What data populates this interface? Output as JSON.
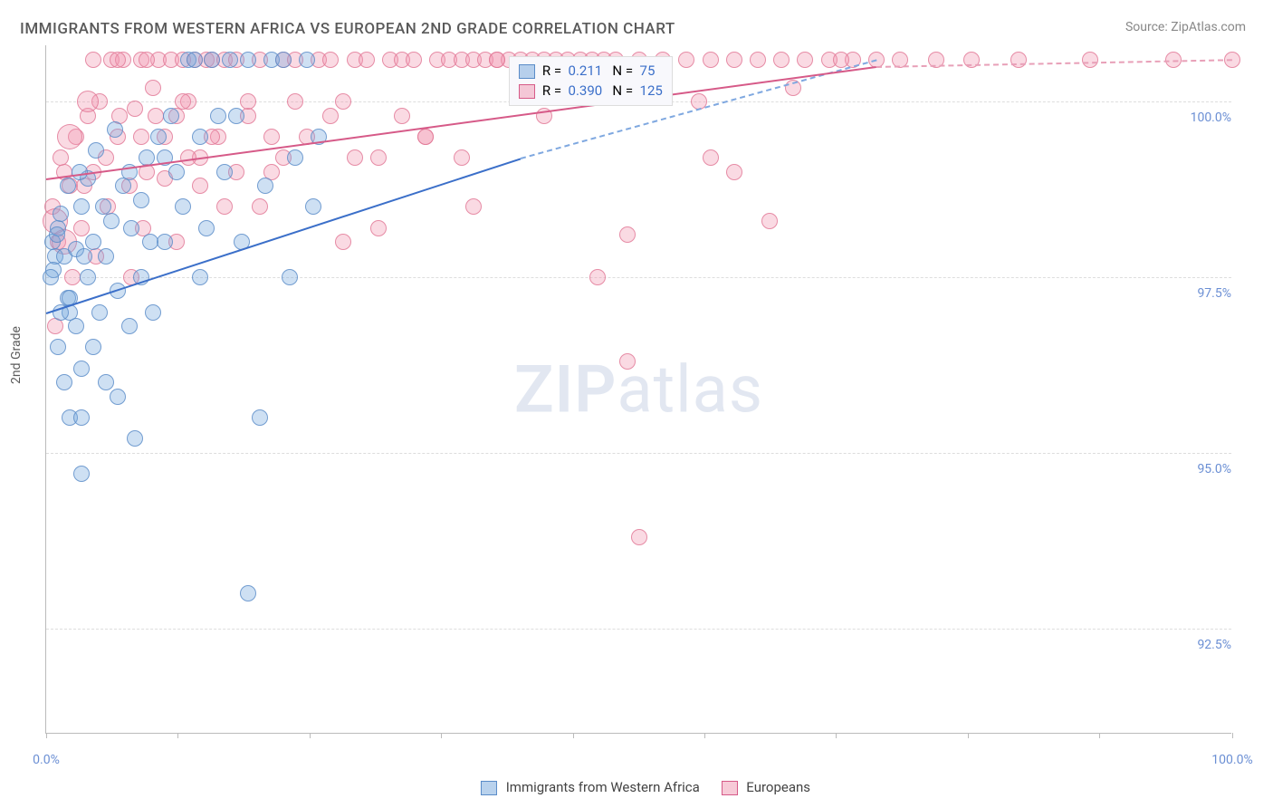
{
  "title": "IMMIGRANTS FROM WESTERN AFRICA VS EUROPEAN 2ND GRADE CORRELATION CHART",
  "source_label": "Source:",
  "source_name": "ZipAtlas.com",
  "y_axis_label": "2nd Grade",
  "watermark_bold": "ZIP",
  "watermark_rest": "atlas",
  "chart": {
    "type": "scatter",
    "xlim": [
      0,
      100
    ],
    "ylim": [
      91.0,
      100.8
    ],
    "y_ticks": [
      92.5,
      95.0,
      97.5,
      100.0
    ],
    "y_tick_labels": [
      "92.5%",
      "95.0%",
      "97.5%",
      "100.0%"
    ],
    "x_ticks": [
      0,
      11.1,
      22.2,
      33.3,
      44.4,
      55.5,
      66.6,
      77.7,
      88.8,
      100
    ],
    "x_tick_labels": {
      "0": "0.0%",
      "100": "100.0%"
    },
    "background_color": "#ffffff",
    "grid_color": "#dddddd",
    "marker_r": 9,
    "marker_r_large": 14,
    "series": {
      "blue": {
        "label": "Immigrants from Western Africa",
        "color": "#73a5dc",
        "border": "#5a8cc8",
        "R": "0.211",
        "N": "75",
        "trend": {
          "x1": 0,
          "y1": 97.0,
          "x2": 40,
          "y2": 99.2,
          "x3": 70,
          "y3": 100.6
        },
        "points": [
          [
            0.5,
            98.0
          ],
          [
            0.8,
            97.8
          ],
          [
            1.0,
            98.2
          ],
          [
            0.6,
            97.6
          ],
          [
            1.2,
            98.4
          ],
          [
            0.4,
            97.5
          ],
          [
            1.5,
            97.8
          ],
          [
            0.9,
            98.1
          ],
          [
            1.8,
            97.2
          ],
          [
            2.0,
            97.0
          ],
          [
            2.5,
            97.9
          ],
          [
            3.0,
            98.5
          ],
          [
            1.0,
            96.5
          ],
          [
            1.5,
            96.0
          ],
          [
            2.0,
            95.5
          ],
          [
            2.5,
            96.8
          ],
          [
            3.5,
            97.5
          ],
          [
            4.0,
            98.0
          ],
          [
            3.0,
            95.5
          ],
          [
            4.5,
            97.0
          ],
          [
            5.0,
            97.8
          ],
          [
            5.5,
            98.3
          ],
          [
            6.0,
            95.8
          ],
          [
            6.5,
            98.8
          ],
          [
            7.0,
            99.0
          ],
          [
            7.5,
            95.2
          ],
          [
            8.0,
            98.6
          ],
          [
            8.5,
            99.2
          ],
          [
            9.0,
            97.0
          ],
          [
            9.5,
            99.5
          ],
          [
            10.0,
            98.0
          ],
          [
            10.5,
            99.8
          ],
          [
            11.0,
            99.0
          ],
          [
            12.0,
            100.6
          ],
          [
            12.5,
            100.6
          ],
          [
            13.0,
            99.5
          ],
          [
            13.5,
            98.2
          ],
          [
            14.0,
            100.6
          ],
          [
            15.0,
            99.0
          ],
          [
            15.5,
            100.6
          ],
          [
            16.0,
            99.8
          ],
          [
            17.0,
            100.6
          ],
          [
            18.0,
            95.5
          ],
          [
            19.0,
            100.6
          ],
          [
            20.0,
            100.6
          ],
          [
            21.0,
            99.2
          ],
          [
            22.0,
            100.6
          ],
          [
            23.0,
            99.5
          ],
          [
            2.0,
            97.2
          ],
          [
            3.0,
            96.2
          ],
          [
            4.0,
            96.5
          ],
          [
            5.0,
            96.0
          ],
          [
            6.0,
            97.3
          ],
          [
            7.0,
            96.8
          ],
          [
            8.0,
            97.5
          ],
          [
            3.5,
            98.9
          ],
          [
            4.2,
            99.3
          ],
          [
            5.8,
            99.6
          ],
          [
            7.2,
            98.2
          ],
          [
            8.8,
            98.0
          ],
          [
            1.2,
            97.0
          ],
          [
            1.8,
            98.8
          ],
          [
            2.8,
            99.0
          ],
          [
            3.2,
            97.8
          ],
          [
            4.8,
            98.5
          ],
          [
            17.0,
            93.0
          ],
          [
            3.0,
            94.7
          ],
          [
            10.0,
            99.2
          ],
          [
            11.5,
            98.5
          ],
          [
            13.0,
            97.5
          ],
          [
            14.5,
            99.8
          ],
          [
            16.5,
            98.0
          ],
          [
            18.5,
            98.8
          ],
          [
            20.5,
            97.5
          ],
          [
            22.5,
            98.5
          ]
        ]
      },
      "pink": {
        "label": "Europeans",
        "color": "#f096af",
        "border": "#d65a88",
        "R": "0.390",
        "N": "125",
        "trend": {
          "x1": 0,
          "y1": 98.9,
          "x2": 70,
          "y2": 100.5,
          "x3": 100,
          "y3": 100.6
        },
        "points": [
          [
            0.5,
            98.5
          ],
          [
            1.0,
            98.0
          ],
          [
            1.5,
            99.0
          ],
          [
            2.0,
            98.8
          ],
          [
            2.5,
            99.5
          ],
          [
            3.0,
            98.2
          ],
          [
            3.5,
            99.8
          ],
          [
            4.0,
            99.0
          ],
          [
            4.5,
            100.0
          ],
          [
            5.0,
            99.2
          ],
          [
            5.5,
            100.6
          ],
          [
            6.0,
            99.5
          ],
          [
            6.5,
            100.6
          ],
          [
            7.0,
            98.8
          ],
          [
            7.5,
            99.9
          ],
          [
            8.0,
            100.6
          ],
          [
            8.5,
            99.0
          ],
          [
            9.0,
            100.2
          ],
          [
            9.5,
            100.6
          ],
          [
            10.0,
            99.5
          ],
          [
            10.5,
            100.6
          ],
          [
            11.0,
            99.8
          ],
          [
            11.5,
            100.6
          ],
          [
            12.0,
            100.0
          ],
          [
            12.5,
            100.6
          ],
          [
            13.0,
            99.2
          ],
          [
            13.5,
            100.6
          ],
          [
            14.0,
            100.6
          ],
          [
            14.5,
            99.5
          ],
          [
            15.0,
            100.6
          ],
          [
            16.0,
            100.6
          ],
          [
            17.0,
            99.8
          ],
          [
            18.0,
            100.6
          ],
          [
            19.0,
            99.0
          ],
          [
            20.0,
            100.6
          ],
          [
            21.0,
            100.6
          ],
          [
            22.0,
            99.5
          ],
          [
            23.0,
            100.6
          ],
          [
            24.0,
            100.6
          ],
          [
            25.0,
            100.0
          ],
          [
            26.0,
            100.6
          ],
          [
            27.0,
            100.6
          ],
          [
            28.0,
            99.2
          ],
          [
            29.0,
            100.6
          ],
          [
            30.0,
            100.6
          ],
          [
            31.0,
            100.6
          ],
          [
            32.0,
            99.5
          ],
          [
            33.0,
            100.6
          ],
          [
            34.0,
            100.6
          ],
          [
            35.0,
            100.6
          ],
          [
            36.0,
            100.6
          ],
          [
            37.0,
            100.6
          ],
          [
            38.0,
            100.6
          ],
          [
            39.0,
            100.6
          ],
          [
            40.0,
            100.6
          ],
          [
            41.0,
            100.6
          ],
          [
            42.0,
            100.6
          ],
          [
            43.0,
            100.6
          ],
          [
            44.0,
            100.6
          ],
          [
            45.0,
            100.6
          ],
          [
            46.0,
            100.6
          ],
          [
            47.0,
            100.6
          ],
          [
            48.0,
            100.6
          ],
          [
            50.0,
            100.6
          ],
          [
            52.0,
            100.6
          ],
          [
            54.0,
            100.6
          ],
          [
            56.0,
            100.6
          ],
          [
            58.0,
            100.6
          ],
          [
            60.0,
            100.6
          ],
          [
            62.0,
            100.6
          ],
          [
            64.0,
            100.6
          ],
          [
            66.0,
            100.6
          ],
          [
            68.0,
            100.6
          ],
          [
            70.0,
            100.6
          ],
          [
            72.0,
            100.6
          ],
          [
            75.0,
            100.6
          ],
          [
            78.0,
            100.6
          ],
          [
            82.0,
            100.6
          ],
          [
            88.0,
            100.6
          ],
          [
            95.0,
            100.6
          ],
          [
            61.0,
            98.3
          ],
          [
            56.0,
            99.2
          ],
          [
            49.0,
            96.3
          ],
          [
            46.5,
            97.5
          ],
          [
            49.0,
            98.1
          ],
          [
            36.0,
            98.5
          ],
          [
            30.0,
            99.8
          ],
          [
            25.0,
            98.0
          ],
          [
            20.0,
            99.2
          ],
          [
            15.0,
            98.5
          ],
          [
            12.0,
            99.2
          ],
          [
            10.0,
            98.9
          ],
          [
            8.0,
            99.5
          ],
          [
            0.8,
            96.8
          ],
          [
            1.2,
            99.2
          ],
          [
            2.2,
            97.5
          ],
          [
            3.2,
            98.8
          ],
          [
            4.2,
            97.8
          ],
          [
            5.2,
            98.5
          ],
          [
            6.2,
            99.8
          ],
          [
            7.2,
            97.5
          ],
          [
            8.2,
            98.2
          ],
          [
            9.2,
            99.8
          ],
          [
            1.5,
            98.0,
            14
          ],
          [
            2.0,
            99.5,
            14
          ],
          [
            0.8,
            98.3,
            14
          ],
          [
            3.5,
            100.0,
            12
          ],
          [
            50.0,
            93.8
          ],
          [
            55.0,
            100.0
          ],
          [
            58.0,
            99.0
          ],
          [
            63.0,
            100.2
          ],
          [
            67.0,
            100.6
          ],
          [
            35.0,
            99.2
          ],
          [
            38.0,
            100.6
          ],
          [
            42.0,
            99.8
          ],
          [
            28.0,
            98.2
          ],
          [
            32.0,
            99.5
          ],
          [
            24.0,
            99.8
          ],
          [
            26.0,
            99.2
          ],
          [
            16.0,
            99.0
          ],
          [
            18.0,
            98.5
          ],
          [
            21.0,
            100.0
          ],
          [
            11.0,
            98.0
          ],
          [
            13.0,
            98.8
          ],
          [
            14.0,
            99.5
          ],
          [
            17.0,
            100.0
          ],
          [
            19.0,
            99.5
          ],
          [
            4.0,
            100.6
          ],
          [
            6.0,
            100.6
          ],
          [
            8.5,
            100.6
          ],
          [
            11.5,
            100.0
          ],
          [
            100.0,
            100.6
          ]
        ]
      }
    }
  },
  "legend_box": {
    "r_label": "R =",
    "n_label": "N ="
  }
}
